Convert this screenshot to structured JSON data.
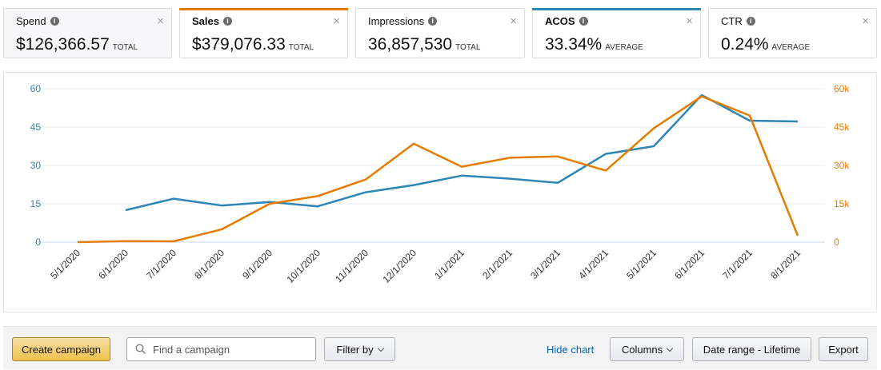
{
  "metrics": [
    {
      "label": "Spend",
      "value": "$126,366.57",
      "aggregate": "TOTAL",
      "bold": false,
      "bar_color": null
    },
    {
      "label": "Sales",
      "value": "$379,076.33",
      "aggregate": "TOTAL",
      "bold": true,
      "bar_color": "#e57c00"
    },
    {
      "label": "Impressions",
      "value": "36,857,530",
      "aggregate": "TOTAL",
      "bold": false,
      "bar_color": null
    },
    {
      "label": "ACOS",
      "value": "33.34%",
      "aggregate": "AVERAGE",
      "bold": true,
      "bar_color": "#2e86b5"
    },
    {
      "label": "CTR",
      "value": "0.24%",
      "aggregate": "AVERAGE",
      "bold": false,
      "bar_color": null
    }
  ],
  "icons": {
    "info": "info-icon",
    "close": "close-icon",
    "search": "search-icon",
    "dropdown": "chevron-down-icon"
  },
  "close_glyph": "×",
  "chart_data": {
    "type": "line",
    "x": [
      "5/1/2020",
      "6/1/2020",
      "7/1/2020",
      "8/1/2020",
      "9/1/2020",
      "10/1/2020",
      "11/1/2020",
      "12/1/2020",
      "1/1/2021",
      "2/1/2021",
      "3/1/2021",
      "4/1/2021",
      "5/1/2021",
      "6/1/2021",
      "7/1/2021",
      "8/1/2021"
    ],
    "y_left": {
      "ticks": [
        "0",
        "15",
        "30",
        "45",
        "60"
      ],
      "range": [
        0,
        60
      ],
      "color": "#2e86b5"
    },
    "y_right": {
      "ticks": [
        "0",
        "15k",
        "30k",
        "45k",
        "60k"
      ],
      "range": [
        0,
        60000
      ],
      "color": "#e57c00"
    },
    "series": [
      {
        "axis": "left",
        "color": "#2e86b5",
        "values": [
          null,
          12.5,
          17,
          14.3,
          15.7,
          14,
          19.5,
          22.3,
          26,
          24.8,
          23.2,
          34.5,
          37.5,
          57.5,
          47.5,
          47.2
        ]
      },
      {
        "axis": "right",
        "color": "#e57c00",
        "values": [
          0,
          400,
          300,
          5000,
          15000,
          18000,
          24500,
          38500,
          29500,
          33000,
          33500,
          28000,
          44500,
          57000,
          49500,
          2500
        ]
      }
    ],
    "grid": true
  },
  "toolbar": {
    "create_label": "Create campaign",
    "search_placeholder": "Find a campaign",
    "filter_label": "Filter by",
    "hide_chart_label": "Hide chart",
    "columns_label": "Columns",
    "date_range_label": "Date range - Lifetime",
    "export_label": "Export"
  }
}
